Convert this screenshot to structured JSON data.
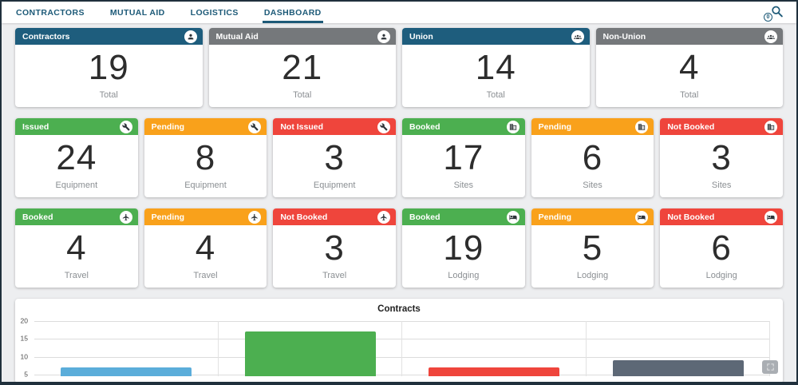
{
  "nav": {
    "tabs": [
      {
        "label": "CONTRACTORS",
        "active": false
      },
      {
        "label": "MUTUAL AID",
        "active": false
      },
      {
        "label": "LOGISTICS",
        "active": false
      },
      {
        "label": "DASHBOARD",
        "active": true
      }
    ],
    "search": {
      "icon": "search-icon",
      "badge": "0"
    }
  },
  "colors": {
    "nav_text": "#1d5a78",
    "header_blue": "#1e5d7d",
    "header_gray": "#75787b",
    "status_green": "#4caf50",
    "status_orange": "#f9a11b",
    "status_red": "#ef453c"
  },
  "cards": [
    {
      "title": "Contractors",
      "value": "19",
      "label": "Total",
      "icon": "person-icon",
      "color": "blue"
    },
    {
      "title": "Mutual Aid",
      "value": "21",
      "label": "Total",
      "icon": "person-icon",
      "color": "gray"
    },
    {
      "title": "Union",
      "value": "14",
      "label": "Total",
      "icon": "group-icon",
      "color": "blue"
    },
    {
      "title": "Non-Union",
      "value": "4",
      "label": "Total",
      "icon": "group-icon",
      "color": "gray"
    },
    {
      "title": "Issued",
      "value": "24",
      "label": "Equipment",
      "icon": "tools-icon",
      "color": "green"
    },
    {
      "title": "Pending",
      "value": "8",
      "label": "Equipment",
      "icon": "tools-icon",
      "color": "orange"
    },
    {
      "title": "Not Issued",
      "value": "3",
      "label": "Equipment",
      "icon": "tools-icon",
      "color": "red"
    },
    {
      "title": "Booked",
      "value": "17",
      "label": "Sites",
      "icon": "building-icon",
      "color": "green"
    },
    {
      "title": "Pending",
      "value": "6",
      "label": "Sites",
      "icon": "building-icon",
      "color": "orange"
    },
    {
      "title": "Not Booked",
      "value": "3",
      "label": "Sites",
      "icon": "building-icon",
      "color": "red"
    },
    {
      "title": "Booked",
      "value": "4",
      "label": "Travel",
      "icon": "plane-icon",
      "color": "green"
    },
    {
      "title": "Pending",
      "value": "4",
      "label": "Travel",
      "icon": "plane-icon",
      "color": "orange"
    },
    {
      "title": "Not Booked",
      "value": "3",
      "label": "Travel",
      "icon": "plane-icon",
      "color": "red"
    },
    {
      "title": "Booked",
      "value": "19",
      "label": "Lodging",
      "icon": "bed-icon",
      "color": "green"
    },
    {
      "title": "Pending",
      "value": "5",
      "label": "Lodging",
      "icon": "bed-icon",
      "color": "orange"
    },
    {
      "title": "Not Booked",
      "value": "6",
      "label": "Lodging",
      "icon": "bed-icon",
      "color": "red"
    }
  ],
  "chart_data": {
    "type": "bar",
    "title": "Contracts",
    "yticks": [
      5,
      10,
      15,
      20
    ],
    "axis_visible_range": [
      5,
      20
    ],
    "grid": true,
    "x_labels_visible": false,
    "bars": [
      {
        "value": 7,
        "color": "#5badda"
      },
      {
        "value": 17,
        "color": "#4caf50"
      },
      {
        "value": 7,
        "color": "#ef453c"
      },
      {
        "value": 9,
        "color": "#5d6876"
      }
    ]
  }
}
